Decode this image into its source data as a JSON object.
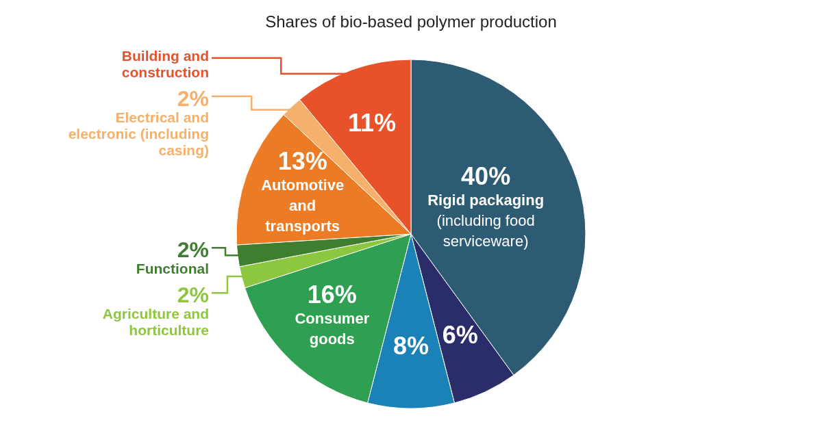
{
  "chart_data": {
    "type": "pie",
    "subtitle": "Shares of bio-based polymer production",
    "categories": [
      "Rigid packaging (including food serviceware)",
      null,
      null,
      "Consumer goods",
      "Agriculture and horticulture",
      "Functional",
      "Automotive and transports",
      "Electrical and electronic (including casing)",
      "Building and construction"
    ],
    "values": [
      40,
      6,
      8,
      16,
      2,
      2,
      13,
      2,
      11
    ],
    "colors": [
      "#2d5b74",
      "#2b2d6b",
      "#1b82b8",
      "#2fa052",
      "#8dc63f",
      "#3e7e2f",
      "#ec7b25",
      "#f5b06c",
      "#e8522a"
    ],
    "value_labels": [
      "40%",
      "6%",
      "8%",
      "16%",
      "2%",
      "2%",
      "13%",
      "2%",
      "11%"
    ]
  }
}
